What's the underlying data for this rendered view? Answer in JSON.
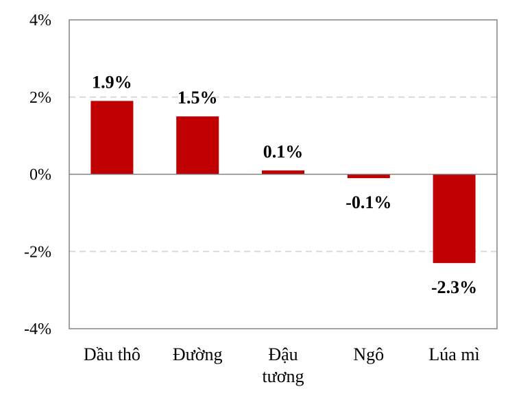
{
  "chart_data": {
    "type": "bar",
    "title": "",
    "xlabel": "",
    "ylabel": "",
    "categories": [
      "Dầu thô",
      "Đường",
      "Đậu tương",
      "Ngô",
      "Lúa mì"
    ],
    "category_lines": [
      [
        "Dầu thô"
      ],
      [
        "Đường"
      ],
      [
        "Đậu",
        "tương"
      ],
      [
        "Ngô"
      ],
      [
        "Lúa mì"
      ]
    ],
    "values": [
      1.9,
      1.5,
      0.1,
      -0.1,
      -2.3
    ],
    "data_labels": [
      "1.9%",
      "1.5%",
      "0.1%",
      "-0.1%",
      "-2.3%"
    ],
    "ylim": [
      -4,
      4
    ],
    "yticks": [
      -4,
      -2,
      0,
      2,
      4
    ],
    "ytick_labels": [
      "-4%",
      "-2%",
      "0%",
      "2%",
      "4%"
    ],
    "grid": "horizontal dashed",
    "legend": "none",
    "bar_color": "#C00000"
  }
}
